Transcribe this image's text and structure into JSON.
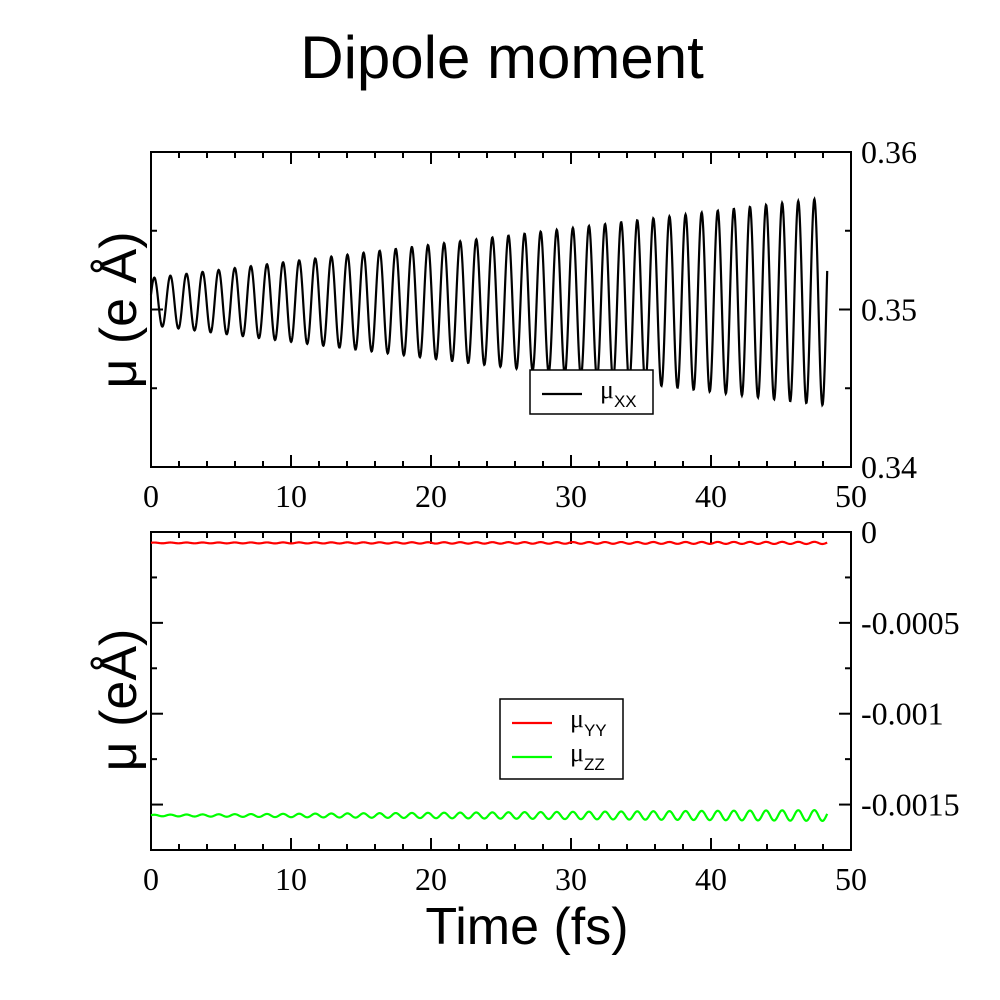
{
  "title": "Dipole moment",
  "chart_data": [
    {
      "type": "line",
      "ylabel": "μ (e Å)",
      "xlabel": "",
      "xlim": [
        0,
        50
      ],
      "ylim": [
        0.34,
        0.36
      ],
      "x_ticks": [
        "0",
        "10",
        "20",
        "30",
        "40",
        "50"
      ],
      "y_ticks": [
        "0.34",
        "0.35",
        "0.36"
      ],
      "y_tick_values": [
        0.34,
        0.35,
        0.36
      ],
      "y_axis_side": "right",
      "legend_position": "center-right",
      "series": [
        {
          "name": "μXX",
          "legend_mu": "μ",
          "legend_sub": "XX",
          "color": "#000000",
          "form": "oscillation",
          "x_range": [
            0,
            48.3
          ],
          "center": 0.3505,
          "amplitude_start": 0.0015,
          "amplitude_end": 0.0066,
          "cycles": 42,
          "phase": 0.3
        }
      ]
    },
    {
      "type": "line",
      "ylabel": "μ (eÅ)",
      "xlabel": "Time (fs)",
      "xlim": [
        0,
        50
      ],
      "ylim": [
        -0.00175,
        0.0
      ],
      "x_ticks": [
        "0",
        "10",
        "20",
        "30",
        "40",
        "50"
      ],
      "y_ticks": [
        "0",
        "-0.0005",
        "-0.001",
        "-0.0015"
      ],
      "y_tick_values": [
        0,
        -0.0005,
        -0.001,
        -0.0015
      ],
      "y_axis_side": "right",
      "legend_position": "center",
      "series": [
        {
          "name": "μYY",
          "legend_mu": "μ",
          "legend_sub": "YY",
          "color": "#ff0000",
          "form": "oscillation",
          "x_range": [
            0,
            48.3
          ],
          "center": -6e-05,
          "amplitude_start": 2e-06,
          "amplitude_end": 6e-06,
          "cycles": 42,
          "phase": 0.3
        },
        {
          "name": "μZZ",
          "legend_mu": "μ",
          "legend_sub": "ZZ",
          "color": "#00ff00",
          "form": "oscillation",
          "x_range": [
            0,
            48.3
          ],
          "center": -0.00156,
          "amplitude_start": 4e-06,
          "amplitude_end": 3e-05,
          "cycles": 42,
          "phase": 0.3
        }
      ]
    }
  ]
}
